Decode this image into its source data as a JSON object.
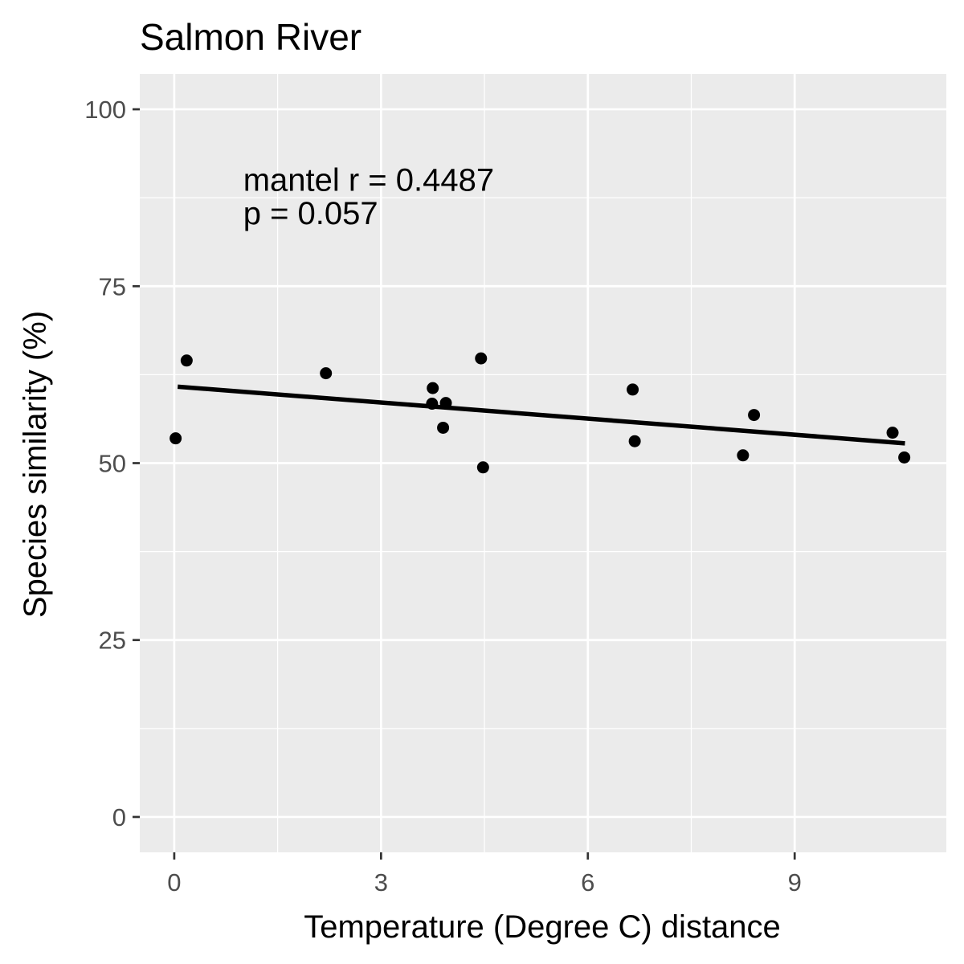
{
  "chart_data": {
    "type": "scatter",
    "title": "Salmon River",
    "xlabel": "Temperature (Degree C) distance",
    "ylabel": "Species similarity (%)",
    "xlim": [
      -0.5,
      11.2
    ],
    "ylim": [
      -5,
      105
    ],
    "x_ticks": [
      0,
      3,
      6,
      9
    ],
    "x_tick_labels": [
      "0",
      "3",
      "6",
      "9"
    ],
    "y_ticks": [
      0,
      25,
      50,
      75,
      100
    ],
    "y_tick_labels": [
      "0",
      "25",
      "50",
      "75",
      "100"
    ],
    "grid": true,
    "legend": "none",
    "colors": {
      "panel": "#ebebeb",
      "grid": "#ffffff",
      "points": "#000000",
      "trend_line": "#000000",
      "tick_text": "#4d4d4d"
    },
    "series": [
      {
        "points": [
          {
            "x": 0.02,
            "y": 53.5
          },
          {
            "x": 0.18,
            "y": 64.5
          },
          {
            "x": 2.2,
            "y": 62.7
          },
          {
            "x": 3.75,
            "y": 60.6
          },
          {
            "x": 3.74,
            "y": 58.4
          },
          {
            "x": 3.94,
            "y": 58.5
          },
          {
            "x": 3.9,
            "y": 55.0
          },
          {
            "x": 4.45,
            "y": 64.8
          },
          {
            "x": 4.48,
            "y": 49.4
          },
          {
            "x": 6.65,
            "y": 60.4
          },
          {
            "x": 6.68,
            "y": 53.1
          },
          {
            "x": 8.25,
            "y": 51.1
          },
          {
            "x": 8.41,
            "y": 56.8
          },
          {
            "x": 10.42,
            "y": 54.3
          },
          {
            "x": 10.59,
            "y": 50.8
          }
        ]
      }
    ],
    "trend_line": {
      "x": [
        0.05,
        10.6
      ],
      "y": [
        60.8,
        52.8
      ]
    },
    "annotations": [
      {
        "text": "mantel r = 0.4487",
        "x": 1.0,
        "y": 88.5
      },
      {
        "text": "p = 0.057",
        "x": 1.0,
        "y": 83.8
      }
    ]
  }
}
